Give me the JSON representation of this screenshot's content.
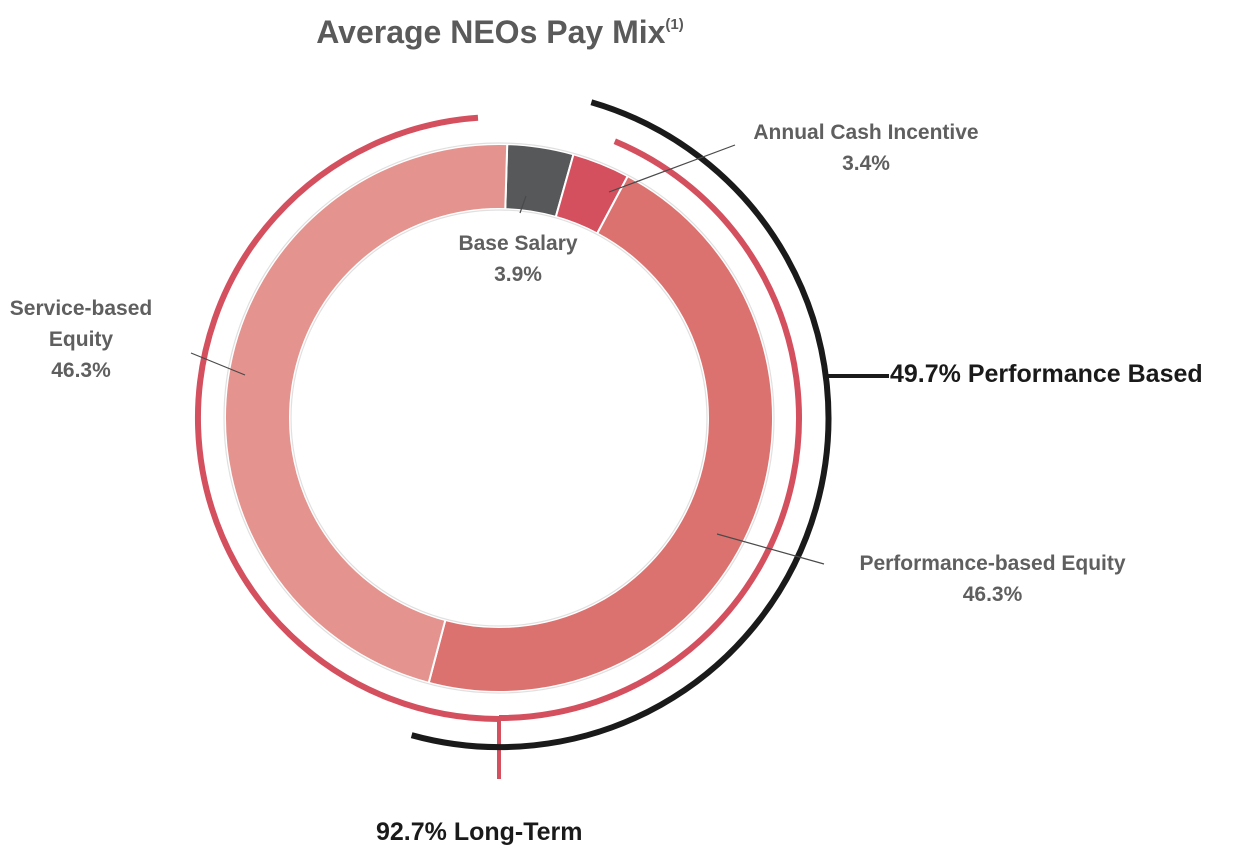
{
  "title": "Average NEOs Pay Mix",
  "title_footnote": "(1)",
  "chart_data": {
    "type": "pie",
    "donut": true,
    "slices": [
      {
        "label": "Base Salary",
        "value": 3.9,
        "value_label": "3.9%",
        "color": "#57585a"
      },
      {
        "label": "Annual Cash Incentive",
        "value": 3.4,
        "value_label": "3.4%",
        "color": "#d4505f"
      },
      {
        "label": "Performance-based Equity",
        "value": 46.3,
        "value_label": "46.3%",
        "color": "#dc7270"
      },
      {
        "label": "Service-based Equity",
        "value": 46.3,
        "value_label": "46.3%",
        "color": "#e4938e"
      }
    ],
    "labels": {
      "base": [
        "Base Salary",
        "3.9%"
      ],
      "aci": [
        "Annual Cash Incentive",
        "3.4%"
      ],
      "pbe": [
        "Performance-based Equity",
        "46.3%"
      ],
      "sbe": [
        "Service-",
        "based",
        "Equity",
        "46.3%"
      ]
    },
    "annotations": [
      {
        "text": "49.7% Performance Based",
        "color": "#1a1a1a",
        "position": "right"
      },
      {
        "text": "92.7% Long-Term",
        "color": "#d4505f",
        "position": "bottom"
      }
    ]
  },
  "colors": {
    "accent_red": "#d4505f",
    "dark_arc": "#1a1a1a",
    "label_grey": "#5f5f5f"
  }
}
